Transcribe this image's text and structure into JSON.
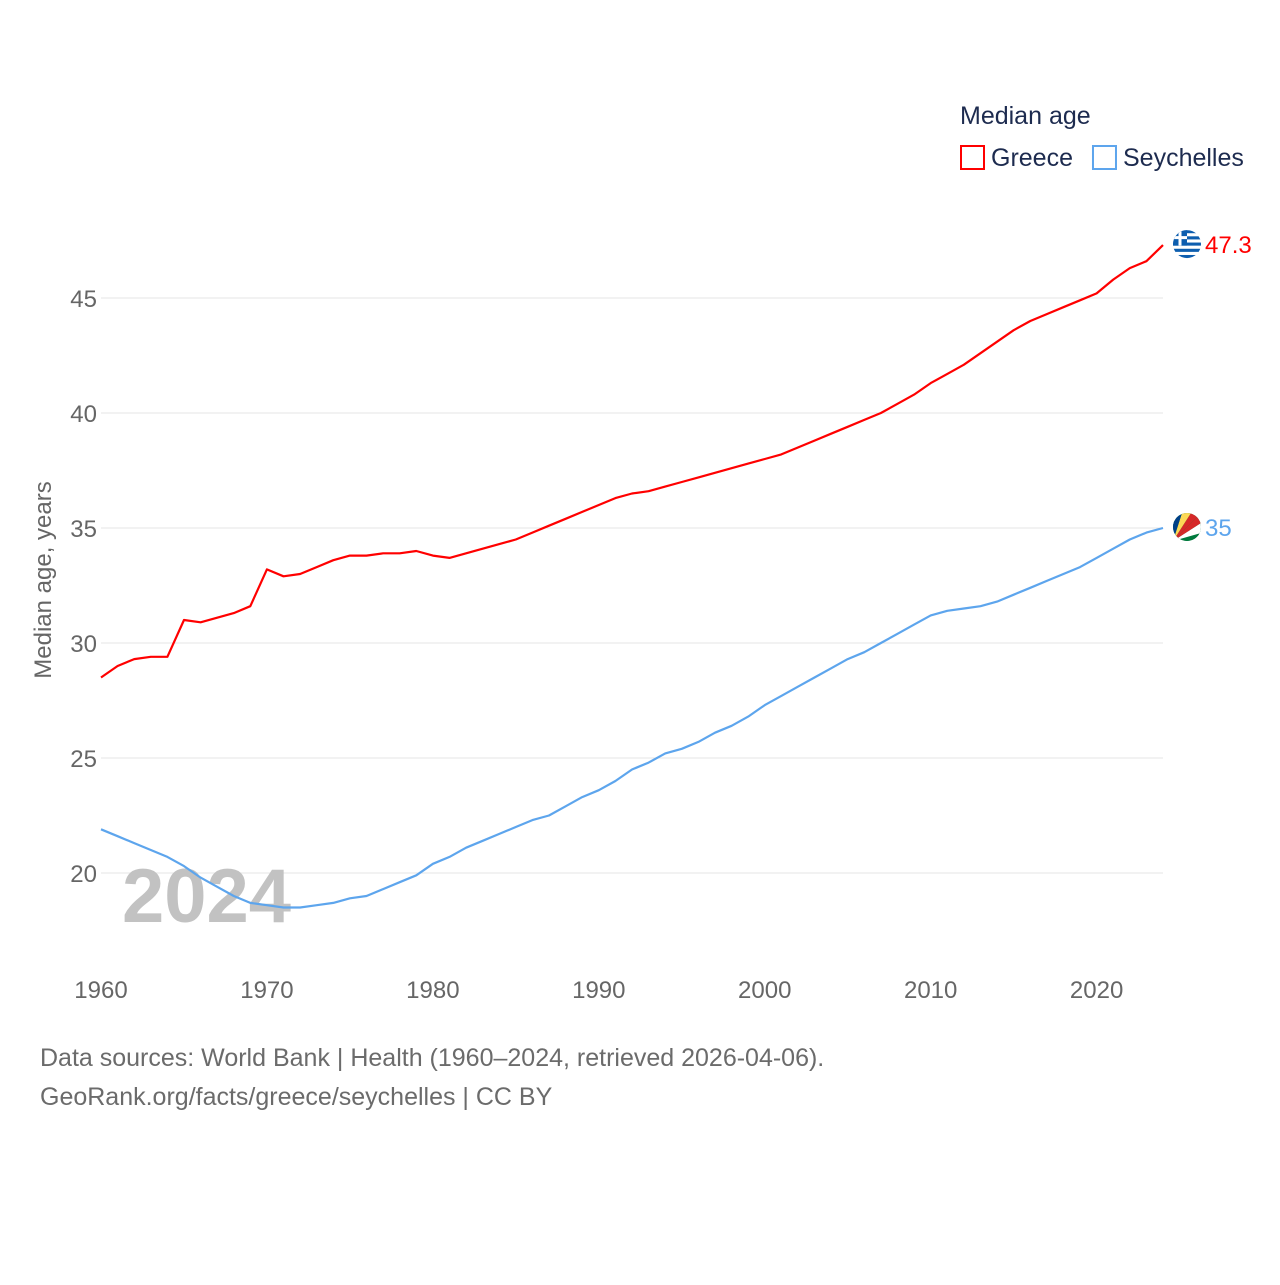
{
  "chart_data": {
    "type": "line",
    "title": "Median age",
    "ylabel": "Median age, years",
    "xlabel": "",
    "ylim": [
      16.5,
      48
    ],
    "xlim": [
      1960,
      2024
    ],
    "y_ticks": [
      20,
      25,
      30,
      35,
      40,
      45
    ],
    "x_ticks": [
      1960,
      1970,
      1980,
      1990,
      2000,
      2010,
      2020
    ],
    "grid": true,
    "legend_placement": "top-right",
    "watermark_year": "2024",
    "x": [
      1960,
      1961,
      1962,
      1963,
      1964,
      1965,
      1966,
      1967,
      1968,
      1969,
      1970,
      1971,
      1972,
      1973,
      1974,
      1975,
      1976,
      1977,
      1978,
      1979,
      1980,
      1981,
      1982,
      1983,
      1984,
      1985,
      1986,
      1987,
      1988,
      1989,
      1990,
      1991,
      1992,
      1993,
      1994,
      1995,
      1996,
      1997,
      1998,
      1999,
      2000,
      2001,
      2002,
      2003,
      2004,
      2005,
      2006,
      2007,
      2008,
      2009,
      2010,
      2011,
      2012,
      2013,
      2014,
      2015,
      2016,
      2017,
      2018,
      2019,
      2020,
      2021,
      2022,
      2023,
      2024
    ],
    "series": [
      {
        "name": "Greece",
        "color": "#ff0000",
        "end_label": "47.3",
        "flag": "greece-flag",
        "values": [
          28.5,
          29.0,
          29.3,
          29.4,
          29.4,
          31.0,
          30.9,
          31.1,
          31.3,
          31.6,
          33.2,
          32.9,
          33.0,
          33.3,
          33.6,
          33.8,
          33.8,
          33.9,
          33.9,
          34.0,
          33.8,
          33.7,
          33.9,
          34.1,
          34.3,
          34.5,
          34.8,
          35.1,
          35.4,
          35.7,
          36.0,
          36.3,
          36.5,
          36.6,
          36.8,
          37.0,
          37.2,
          37.4,
          37.6,
          37.8,
          38.0,
          38.2,
          38.5,
          38.8,
          39.1,
          39.4,
          39.7,
          40.0,
          40.4,
          40.8,
          41.3,
          41.7,
          42.1,
          42.6,
          43.1,
          43.6,
          44.0,
          44.3,
          44.6,
          44.9,
          45.2,
          45.8,
          46.3,
          46.6,
          47.3
        ]
      },
      {
        "name": "Seychelles",
        "color": "#5da5ed",
        "end_label": "35",
        "flag": "seychelles-flag",
        "values": [
          21.9,
          21.6,
          21.3,
          21.0,
          20.7,
          20.3,
          19.8,
          19.4,
          19.0,
          18.7,
          18.6,
          18.5,
          18.5,
          18.6,
          18.7,
          18.9,
          19.0,
          19.3,
          19.6,
          19.9,
          20.4,
          20.7,
          21.1,
          21.4,
          21.7,
          22.0,
          22.3,
          22.5,
          22.9,
          23.3,
          23.6,
          24.0,
          24.5,
          24.8,
          25.2,
          25.4,
          25.7,
          26.1,
          26.4,
          26.8,
          27.3,
          27.7,
          28.1,
          28.5,
          28.9,
          29.3,
          29.6,
          30.0,
          30.4,
          30.8,
          31.2,
          31.4,
          31.5,
          31.6,
          31.8,
          32.1,
          32.4,
          32.7,
          33.0,
          33.3,
          33.7,
          34.1,
          34.5,
          34.8,
          35.0
        ]
      }
    ]
  },
  "footer": {
    "line1": "Data sources: World Bank | Health (1960–2024, retrieved 2026-04-06).",
    "line2": "GeoRank.org/facts/greece/seychelles | CC BY"
  }
}
